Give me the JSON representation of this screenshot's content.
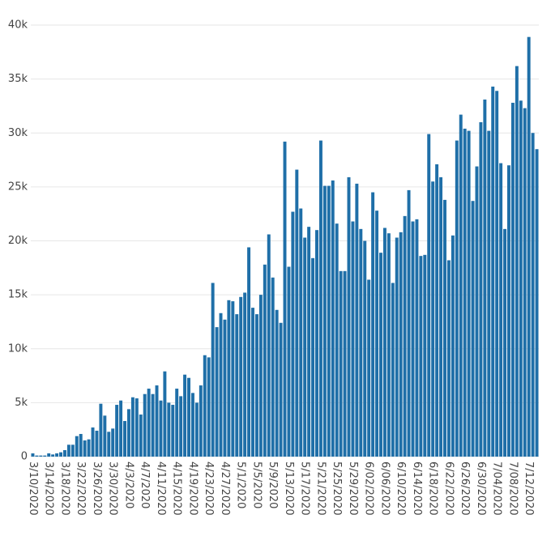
{
  "chart_data": {
    "type": "bar",
    "color": "#1f6fa8",
    "grid": true,
    "ylim": [
      0,
      40000
    ],
    "yticks": [
      {
        "value": 0,
        "label": "0"
      },
      {
        "value": 5000,
        "label": "5k"
      },
      {
        "value": 10000,
        "label": "10k"
      },
      {
        "value": 15000,
        "label": "15k"
      },
      {
        "value": 20000,
        "label": "20k"
      },
      {
        "value": 25000,
        "label": "25k"
      },
      {
        "value": 30000,
        "label": "30k"
      },
      {
        "value": 35000,
        "label": "35k"
      },
      {
        "value": 40000,
        "label": "40k"
      }
    ],
    "categories": [
      "3/10/2020",
      null,
      null,
      null,
      "3/14/2020",
      null,
      null,
      null,
      "3/18/2020",
      null,
      null,
      null,
      "3/22/2020",
      null,
      null,
      null,
      "3/26/2020",
      null,
      null,
      null,
      "3/30/2020",
      null,
      null,
      null,
      "4/3/2020",
      null,
      null,
      null,
      "4/7/2020",
      null,
      null,
      null,
      "4/11/2020",
      null,
      null,
      null,
      "4/15/2020",
      null,
      null,
      null,
      "4/19/2020",
      null,
      null,
      null,
      "4/23/2020",
      null,
      null,
      null,
      "4/27/2020",
      null,
      null,
      null,
      "5/1/2020",
      null,
      null,
      null,
      "5/5/2020",
      null,
      null,
      null,
      "5/9/2020",
      null,
      null,
      null,
      "5/13/2020",
      null,
      null,
      null,
      "5/17/2020",
      null,
      null,
      null,
      "5/21/2020",
      null,
      null,
      null,
      "5/25/2020",
      null,
      null,
      null,
      "5/29/2020",
      null,
      null,
      null,
      "6/02/2020",
      null,
      null,
      null,
      "6/06/2020",
      null,
      null,
      null,
      "6/10/2020",
      null,
      null,
      null,
      "6/14/2020",
      null,
      null,
      null,
      "6/18/2020",
      null,
      null,
      null,
      "6/22/2020",
      null,
      null,
      null,
      "6/26/2020",
      null,
      null,
      null,
      "6/30/2020",
      null,
      null,
      null,
      "7/04/2020",
      null,
      null,
      null,
      "7/08/2020",
      null,
      null,
      null,
      "7/12/2020",
      null,
      null
    ],
    "values": [
      300,
      100,
      100,
      100,
      300,
      200,
      300,
      400,
      600,
      1100,
      1100,
      1900,
      2100,
      1500,
      1600,
      2700,
      2400,
      4900,
      3800,
      2300,
      2600,
      4800,
      5200,
      3300,
      4400,
      5500,
      5400,
      3900,
      5800,
      6300,
      5800,
      6600,
      5200,
      7900,
      5000,
      4800,
      6300,
      5600,
      7600,
      7300,
      5900,
      5000,
      6600,
      9400,
      9200,
      16100,
      12000,
      13300,
      12700,
      14500,
      14400,
      13200,
      14800,
      15200,
      19400,
      13800,
      13200,
      15000,
      17800,
      20600,
      16600,
      13600,
      12400,
      29200,
      17600,
      22700,
      26600,
      23000,
      20300,
      21300,
      18400,
      21000,
      29300,
      25100,
      25100,
      25600,
      21600,
      17200,
      17200,
      25900,
      21800,
      25300,
      21100,
      20000,
      16400,
      24500,
      22800,
      18900,
      21200,
      20700,
      16100,
      20300,
      20800,
      22300,
      24700,
      21800,
      22000,
      18600,
      18700,
      29900,
      25500,
      27100,
      25900,
      23800,
      18200,
      20500,
      29300,
      31700,
      30400,
      30200,
      23700,
      26900,
      31000,
      33100,
      30200,
      34300,
      33900,
      27200,
      21100,
      27000,
      32800,
      36200,
      33000,
      32300,
      38900,
      30000,
      28500
    ]
  }
}
